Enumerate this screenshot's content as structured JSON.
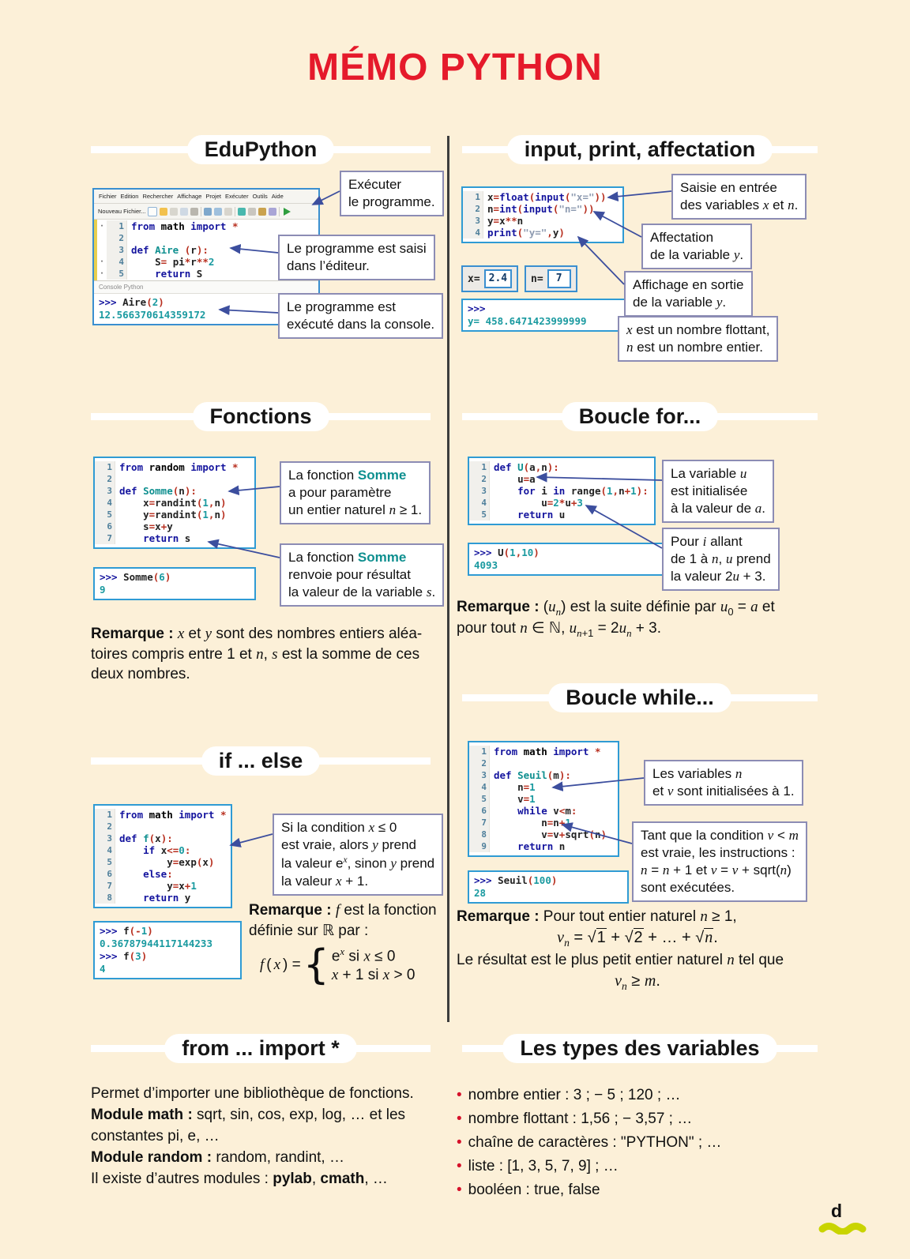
{
  "page": {
    "title": "MÉMO PYTHON",
    "page_marker": "d"
  },
  "sections": {
    "edupython": {
      "header": "EduPython",
      "window": {
        "menu": [
          "Fichier",
          "Edition",
          "Rechercher",
          "Affichage",
          "Projet",
          "Exécuter",
          "Outils",
          "Aide"
        ],
        "toolbar_label": "Nouveau Fichier...",
        "console_label": "Console Python"
      },
      "notes": {
        "run": "Exécuter<br>le programme.",
        "editor": "Le programme est saisi<br>dans l’éditeur.",
        "console": "Le programme est<br>exécuté dans la console."
      }
    },
    "input_print": {
      "header": "input, print, affectation",
      "var_x_label": "x=",
      "var_x_value": "2.4",
      "var_n_label": "n=",
      "var_n_value": "7",
      "notes": {
        "input": "Saisie en entrée<br>des variables <i>x</i> et <i>n</i>.",
        "affect": "Affectation<br>de la variable <i>y</i>.",
        "output": "Affichage en sortie<br>de la variable <i>y</i>.",
        "types": "<i>x</i> est un nombre flottant,<br><i>n</i> est un nombre entier."
      }
    },
    "fonctions": {
      "header": "Fonctions",
      "notes": {
        "param": "La fonction <b class=\"fn\">Somme</b><br>a pour paramètre<br>un entier naturel <i>n</i> ≥ 1.",
        "result": "La fonction <b class=\"fn\">Somme</b><br>renvoie pour résultat<br>la valeur de la variable <i>s</i>."
      },
      "remark": "<b>Remarque :</b> <i>x</i> et <i>y</i> sont des nombres entiers aléa-<br>toires compris entre 1 et <i>n</i>, <i>s</i> est la somme de ces<br>deux nombres."
    },
    "boucle_for": {
      "header": "Boucle for...",
      "notes": {
        "init": "La variable <i>u</i><br>est initialisée<br>à la valeur de <i>a</i>.",
        "loop": "Pour <i>i</i> allant<br>de 1 à <i>n</i>, <i>u</i> prend<br>la valeur 2<i>u</i> + 3."
      },
      "remark": "<b>Remarque :</b> (<i>u</i><sub><i>n</i></sub>) est la suite définie par <i>u</i><sub>0</sub> = <i>a</i> et<br>pour tout <i>n</i> ∈ ℕ, <i>u</i><sub><i>n</i>+1</sub> = 2<i>u</i><sub><i>n</i></sub> + 3."
    },
    "if_else": {
      "header": "if ... else",
      "notes": {
        "cond": "Si la condition <i>x</i> ≤ 0<br>est vraie, alors <i>y</i> prend<br>la valeur e<sup><i>x</i></sup>, sinon <i>y</i> prend<br>la valeur <i>x</i> + 1."
      },
      "remark_intro": "<b>Remarque :</b> <i>f</i> est la fonction<br>définie sur ℝ par :",
      "remark_formula": "<span class=\"pw\"><i>f</i>(<i>x</i>) = <span class=\"brace\">{</span><span class=\"cases\"><span>e<sup><i>x</i></sup> si <i>x</i> ≤ 0</span><span><i>x</i> + 1 si <i>x</i> &gt; 0</span></span></span>"
    },
    "boucle_while": {
      "header": "Boucle while...",
      "notes": {
        "init": "Les variables <i>n</i><br>et <i>v</i> sont initialisées à 1.",
        "loop": "Tant que la condition <i>v</i> &lt; <i>m</i><br>est vraie, les instructions :<br><i>n</i> = <i>n</i> + 1 et <i>v</i> = <i>v</i> + sqrt(<i>n</i>)<br>sont exécutées."
      },
      "remark_l1": "<b>Remarque :</b> Pour tout entier naturel <i>n</i> ≥ 1,",
      "remark_f1": "<i>v</i><sub><i>n</i></sub> = <span class=\"sq\">√<span class=\"rad\">1</span></span> + <span class=\"sq\">√<span class=\"rad\">2</span></span> + … + <span class=\"sq\">√<span class=\"rad\"><i>n</i></span></span>.",
      "remark_l2": "Le résultat est le plus petit entier naturel <i>n</i> tel que",
      "remark_f2": "<i>v</i><sub><i>n</i></sub> ≥ <i>m</i>."
    },
    "from_import": {
      "header": "from ... import *",
      "body": "Permet d’importer une bibliothèque de fonctions.<br><b>Module math :</b> sqrt, sin, cos, exp, log, … et les<br>constantes pi, e, …<br><b>Module random :</b> random, randint, …<br>Il existe d’autres modules : <b>pylab</b>, <b>cmath</b>, …"
    },
    "types": {
      "header": "Les types des variables",
      "items": [
        "nombre entier : 3 ; − 5 ; 120 ; …",
        "nombre flottant : 1,56 ; − 3,57 ; …",
        "chaîne de caractères : \"PYTHON\" ; …",
        "liste : [1, 3, 5, 7, 9] ; …",
        "booléen : true, false"
      ]
    }
  },
  "code_blocks": {
    "edupython": {
      "margins": [
        "·",
        "",
        "",
        "·",
        "·"
      ],
      "lines": [
        [
          [
            "k",
            "from"
          ],
          [
            "p",
            " "
          ],
          [
            "b",
            "math"
          ],
          [
            "p",
            " "
          ],
          [
            "k",
            "import"
          ],
          [
            "p",
            " "
          ],
          [
            "o",
            "*"
          ]
        ],
        [],
        [
          [
            "k",
            "def"
          ],
          [
            "p",
            " "
          ],
          [
            "f",
            "Aire"
          ],
          [
            "p",
            " "
          ],
          [
            "o",
            "("
          ],
          [
            "p",
            "r"
          ],
          [
            "o",
            "):"
          ]
        ],
        [
          [
            "p",
            "    S"
          ],
          [
            "o",
            "="
          ],
          [
            "p",
            " pi"
          ],
          [
            "o",
            "*"
          ],
          [
            "p",
            "r"
          ],
          [
            "o",
            "**"
          ],
          [
            "n",
            "2"
          ]
        ],
        [
          [
            "p",
            "    "
          ],
          [
            "k",
            "return"
          ],
          [
            "p",
            " S"
          ]
        ]
      ]
    },
    "input_print": {
      "lines": [
        [
          [
            "p",
            "x"
          ],
          [
            "o",
            "="
          ],
          [
            "k",
            "float"
          ],
          [
            "o",
            "("
          ],
          [
            "k",
            "input"
          ],
          [
            "o",
            "("
          ],
          [
            "s",
            "\"x=\""
          ],
          [
            "o",
            "))"
          ]
        ],
        [
          [
            "p",
            "n"
          ],
          [
            "o",
            "="
          ],
          [
            "k",
            "int"
          ],
          [
            "o",
            "("
          ],
          [
            "k",
            "input"
          ],
          [
            "o",
            "("
          ],
          [
            "s",
            "\"n=\""
          ],
          [
            "o",
            "))"
          ]
        ],
        [
          [
            "p",
            "y"
          ],
          [
            "o",
            "="
          ],
          [
            "p",
            "x"
          ],
          [
            "o",
            "**"
          ],
          [
            "p",
            "n"
          ]
        ],
        [
          [
            "k",
            "print"
          ],
          [
            "o",
            "("
          ],
          [
            "s",
            "\"y=\""
          ],
          [
            "o",
            ","
          ],
          [
            "p",
            "y"
          ],
          [
            "o",
            ")"
          ]
        ]
      ]
    },
    "fonctions": {
      "lines": [
        [
          [
            "k",
            "from"
          ],
          [
            "p",
            " "
          ],
          [
            "b",
            "random"
          ],
          [
            "p",
            " "
          ],
          [
            "k",
            "import"
          ],
          [
            "p",
            " "
          ],
          [
            "o",
            "*"
          ]
        ],
        [],
        [
          [
            "k",
            "def"
          ],
          [
            "p",
            " "
          ],
          [
            "f",
            "Somme"
          ],
          [
            "o",
            "("
          ],
          [
            "p",
            "n"
          ],
          [
            "o",
            "):"
          ]
        ],
        [
          [
            "p",
            "    x"
          ],
          [
            "o",
            "="
          ],
          [
            "p",
            "randint"
          ],
          [
            "o",
            "("
          ],
          [
            "n",
            "1"
          ],
          [
            "o",
            ","
          ],
          [
            "p",
            "n"
          ],
          [
            "o",
            ")"
          ]
        ],
        [
          [
            "p",
            "    y"
          ],
          [
            "o",
            "="
          ],
          [
            "p",
            "randint"
          ],
          [
            "o",
            "("
          ],
          [
            "n",
            "1"
          ],
          [
            "o",
            ","
          ],
          [
            "p",
            "n"
          ],
          [
            "o",
            ")"
          ]
        ],
        [
          [
            "p",
            "    s"
          ],
          [
            "o",
            "="
          ],
          [
            "p",
            "x"
          ],
          [
            "o",
            "+"
          ],
          [
            "p",
            "y"
          ]
        ],
        [
          [
            "p",
            "    "
          ],
          [
            "k",
            "return"
          ],
          [
            "p",
            " s"
          ]
        ]
      ]
    },
    "boucle_for": {
      "lines": [
        [
          [
            "k",
            "def"
          ],
          [
            "p",
            " "
          ],
          [
            "f",
            "U"
          ],
          [
            "o",
            "("
          ],
          [
            "p",
            "a"
          ],
          [
            "o",
            ","
          ],
          [
            "p",
            "n"
          ],
          [
            "o",
            "):"
          ]
        ],
        [
          [
            "p",
            "    u"
          ],
          [
            "o",
            "="
          ],
          [
            "p",
            "a"
          ]
        ],
        [
          [
            "p",
            "    "
          ],
          [
            "k",
            "for"
          ],
          [
            "p",
            " i "
          ],
          [
            "k",
            "in"
          ],
          [
            "p",
            " range"
          ],
          [
            "o",
            "("
          ],
          [
            "n",
            "1"
          ],
          [
            "o",
            ","
          ],
          [
            "p",
            "n"
          ],
          [
            "o",
            "+"
          ],
          [
            "n",
            "1"
          ],
          [
            "o",
            "):"
          ]
        ],
        [
          [
            "p",
            "        u"
          ],
          [
            "o",
            "="
          ],
          [
            "n",
            "2"
          ],
          [
            "o",
            "*"
          ],
          [
            "p",
            "u"
          ],
          [
            "o",
            "+"
          ],
          [
            "n",
            "3"
          ]
        ],
        [
          [
            "p",
            "    "
          ],
          [
            "k",
            "return"
          ],
          [
            "p",
            " u"
          ]
        ]
      ]
    },
    "if_else": {
      "lines": [
        [
          [
            "k",
            "from"
          ],
          [
            "p",
            " "
          ],
          [
            "b",
            "math"
          ],
          [
            "p",
            " "
          ],
          [
            "k",
            "import"
          ],
          [
            "p",
            " "
          ],
          [
            "o",
            "*"
          ]
        ],
        [],
        [
          [
            "k",
            "def"
          ],
          [
            "p",
            " "
          ],
          [
            "f",
            "f"
          ],
          [
            "o",
            "("
          ],
          [
            "p",
            "x"
          ],
          [
            "o",
            "):"
          ]
        ],
        [
          [
            "p",
            "    "
          ],
          [
            "k",
            "if"
          ],
          [
            "p",
            " x"
          ],
          [
            "o",
            "<="
          ],
          [
            "n",
            "0"
          ],
          [
            "o",
            ":"
          ]
        ],
        [
          [
            "p",
            "        y"
          ],
          [
            "o",
            "="
          ],
          [
            "p",
            "exp"
          ],
          [
            "o",
            "("
          ],
          [
            "p",
            "x"
          ],
          [
            "o",
            ")"
          ]
        ],
        [
          [
            "p",
            "    "
          ],
          [
            "k",
            "else"
          ],
          [
            "o",
            ":"
          ]
        ],
        [
          [
            "p",
            "        y"
          ],
          [
            "o",
            "="
          ],
          [
            "p",
            "x"
          ],
          [
            "o",
            "+"
          ],
          [
            "n",
            "1"
          ]
        ],
        [
          [
            "p",
            "    "
          ],
          [
            "k",
            "return"
          ],
          [
            "p",
            " y"
          ]
        ]
      ]
    },
    "boucle_while": {
      "lines": [
        [
          [
            "k",
            "from"
          ],
          [
            "p",
            " "
          ],
          [
            "b",
            "math"
          ],
          [
            "p",
            " "
          ],
          [
            "k",
            "import"
          ],
          [
            "p",
            " "
          ],
          [
            "o",
            "*"
          ]
        ],
        [],
        [
          [
            "k",
            "def"
          ],
          [
            "p",
            " "
          ],
          [
            "f",
            "Seuil"
          ],
          [
            "o",
            "("
          ],
          [
            "p",
            "m"
          ],
          [
            "o",
            "):"
          ]
        ],
        [
          [
            "p",
            "    n"
          ],
          [
            "o",
            "="
          ],
          [
            "n",
            "1"
          ]
        ],
        [
          [
            "p",
            "    v"
          ],
          [
            "o",
            "="
          ],
          [
            "n",
            "1"
          ]
        ],
        [
          [
            "p",
            "    "
          ],
          [
            "k",
            "while"
          ],
          [
            "p",
            " v"
          ],
          [
            "o",
            "<"
          ],
          [
            "p",
            "m"
          ],
          [
            "o",
            ":"
          ]
        ],
        [
          [
            "p",
            "        n"
          ],
          [
            "o",
            "="
          ],
          [
            "p",
            "n"
          ],
          [
            "o",
            "+"
          ],
          [
            "n",
            "1"
          ]
        ],
        [
          [
            "p",
            "        v"
          ],
          [
            "o",
            "="
          ],
          [
            "p",
            "v"
          ],
          [
            "o",
            "+"
          ],
          [
            "p",
            "sqrt"
          ],
          [
            "o",
            "("
          ],
          [
            "p",
            "n"
          ],
          [
            "o",
            ")"
          ]
        ],
        [
          [
            "p",
            "    "
          ],
          [
            "k",
            "return"
          ],
          [
            "p",
            " n"
          ]
        ]
      ]
    }
  },
  "consoles": {
    "edupython": [
      [
        [
          "k",
          ">>> "
        ],
        [
          "p",
          "Aire"
        ],
        [
          "o",
          "("
        ],
        [
          "n",
          "2"
        ],
        [
          "o",
          ")"
        ]
      ],
      [
        [
          "n",
          "12.566370614359172"
        ]
      ]
    ],
    "input_print": [
      [
        [
          "k",
          ">>>"
        ]
      ],
      [
        [
          "n",
          "y= 458.6471423999999"
        ]
      ]
    ],
    "fonctions": [
      [
        [
          "k",
          ">>> "
        ],
        [
          "p",
          "Somme"
        ],
        [
          "o",
          "("
        ],
        [
          "n",
          "6"
        ],
        [
          "o",
          ")"
        ]
      ],
      [
        [
          "n",
          "9"
        ]
      ]
    ],
    "boucle_for": [
      [
        [
          "k",
          ">>> "
        ],
        [
          "p",
          "U"
        ],
        [
          "o",
          "("
        ],
        [
          "n",
          "1"
        ],
        [
          "o",
          ","
        ],
        [
          "n",
          "10"
        ],
        [
          "o",
          ")"
        ]
      ],
      [
        [
          "n",
          "4093"
        ]
      ]
    ],
    "if_else": [
      [
        [
          "k",
          ">>> "
        ],
        [
          "p",
          "f"
        ],
        [
          "o",
          "(-"
        ],
        [
          "n",
          "1"
        ],
        [
          "o",
          ")"
        ]
      ],
      [
        [
          "n",
          "0.36787944117144233"
        ]
      ],
      [
        [
          "k",
          ">>> "
        ],
        [
          "p",
          "f"
        ],
        [
          "o",
          "("
        ],
        [
          "n",
          "3"
        ],
        [
          "o",
          ")"
        ]
      ],
      [
        [
          "n",
          "4"
        ]
      ]
    ],
    "boucle_while": [
      [
        [
          "k",
          ">>> "
        ],
        [
          "p",
          "Seuil"
        ],
        [
          "o",
          "("
        ],
        [
          "n",
          "100"
        ],
        [
          "o",
          ")"
        ]
      ],
      [
        [
          "n",
          "28"
        ]
      ]
    ]
  }
}
